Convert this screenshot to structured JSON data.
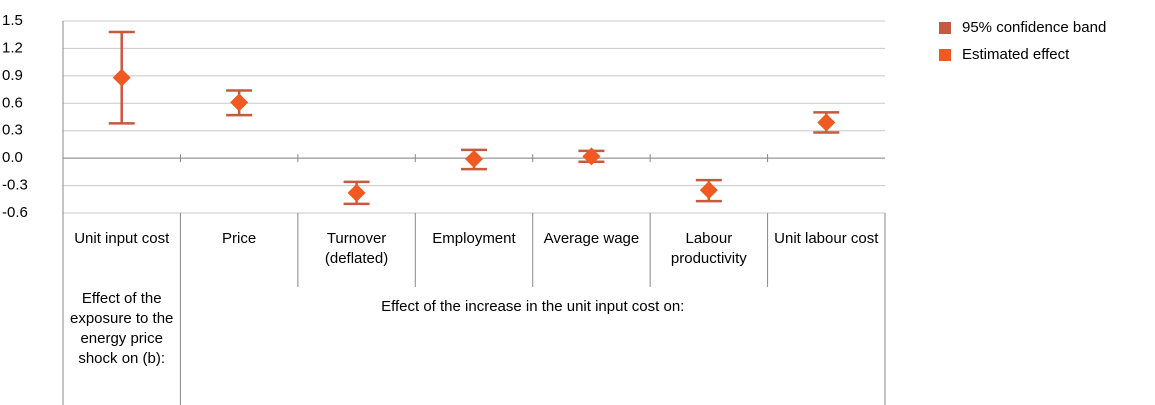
{
  "chart_data": {
    "type": "errorbar",
    "categories": [
      "Unit input cost",
      "Price",
      "Turnover (deflated)",
      "Employment",
      "Average wage",
      "Labour productivity",
      "Unit labour cost"
    ],
    "groups": [
      {
        "label": "Effect of the exposure to the energy price shock on (b):",
        "span": [
          0,
          0
        ]
      },
      {
        "label": "Effect of the increase in the unit input cost on:",
        "span": [
          1,
          6
        ]
      }
    ],
    "series": [
      {
        "name": "95% confidence band",
        "color": "#c55a3f",
        "lower": [
          0.38,
          0.47,
          -0.5,
          -0.12,
          -0.04,
          -0.47,
          0.28
        ],
        "upper": [
          1.38,
          0.74,
          -0.26,
          0.09,
          0.08,
          -0.24,
          0.5
        ]
      },
      {
        "name": "Estimated effect",
        "color": "#f05a22",
        "values": [
          0.88,
          0.61,
          -0.38,
          -0.01,
          0.02,
          -0.35,
          0.39
        ]
      }
    ],
    "ylim": [
      -0.6,
      1.5
    ],
    "yticks": [
      1.5,
      1.2,
      0.9,
      0.6,
      0.3,
      {
        "value": 0,
        "label": "0.0"
      },
      -0.3,
      -0.6
    ],
    "grid": true,
    "legend": "right"
  }
}
